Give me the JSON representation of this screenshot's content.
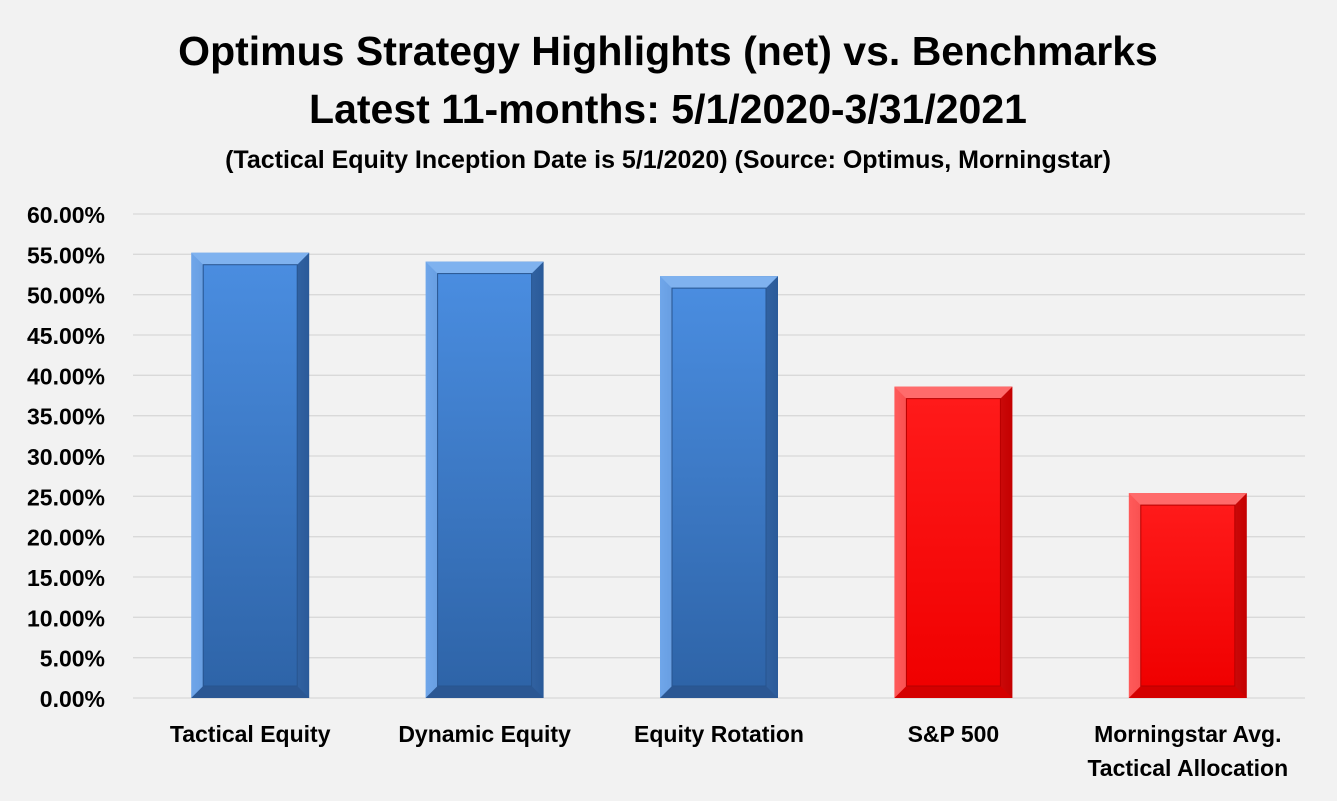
{
  "chart_data": {
    "type": "bar",
    "title": "Optimus Strategy Highlights (net) vs. Benchmarks",
    "subtitle": "Latest 11-months:  5/1/2020-3/31/2021",
    "note": "(Tactical Equity Inception Date is 5/1/2020) (Source:  Optimus, Morningstar)",
    "categories": [
      [
        "Tactical Equity"
      ],
      [
        "Dynamic Equity"
      ],
      [
        "Equity Rotation"
      ],
      [
        "S&P 500"
      ],
      [
        "Morningstar Avg.",
        "Tactical Allocation"
      ]
    ],
    "values": [
      55.2,
      54.1,
      52.3,
      38.6,
      25.4
    ],
    "bar_colors": [
      "#3f7fcf",
      "#3f7fcf",
      "#3f7fcf",
      "#ff0000",
      "#ff0000"
    ],
    "ylim": [
      0,
      60
    ],
    "y_ticks": [
      0,
      5,
      10,
      15,
      20,
      25,
      30,
      35,
      40,
      45,
      50,
      55,
      60
    ],
    "y_tick_labels": [
      "0.00%",
      "5.00%",
      "10.00%",
      "15.00%",
      "20.00%",
      "25.00%",
      "30.00%",
      "35.00%",
      "40.00%",
      "45.00%",
      "50.00%",
      "55.00%",
      "60.00%"
    ],
    "grid": true,
    "xlabel": "",
    "ylabel": ""
  }
}
